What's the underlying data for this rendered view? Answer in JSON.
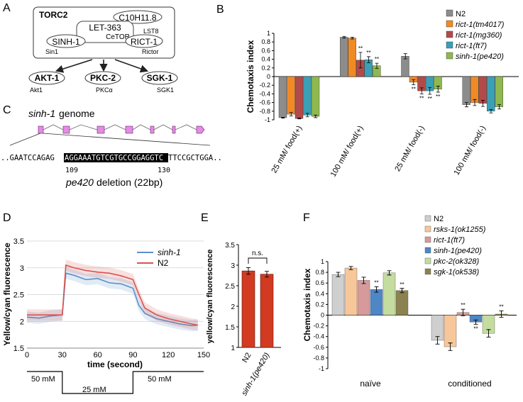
{
  "colors": {
    "n2": "#8c8c8c",
    "tm4017": "#f08a24",
    "mg360": "#b34a4a",
    "ft7": "#3aa0b5",
    "pe420": "#8fb84f",
    "bar_e": "#d23a22",
    "line_sinh1": "#5b8fc9",
    "line_n2": "#d9534f",
    "f_n2": "#cfcfcf",
    "f_rsks1": "#f7c79a",
    "f_rict1": "#d69a9a",
    "f_sinh1": "#4e86c6",
    "f_pkc2": "#c5dca0",
    "f_sgk1": "#8a8250"
  },
  "panelA": {
    "letter": "A",
    "complex_title": "TORC2",
    "c10": "C10H11.8",
    "let363": "LET-363",
    "cetor": "CeTOR",
    "lst8": "LST8",
    "sinh1": "SINH-1",
    "sin1": "Sin1",
    "rict1": "RICT-1",
    "rictor": "Rictor",
    "akt1": "AKT-1",
    "akt1_h": "Akt1",
    "pkc2": "PKC-2",
    "pkc2_h": "PKCα",
    "sgk1": "SGK-1",
    "sgk1_h": "SGK1"
  },
  "panelC": {
    "letter": "C",
    "genome_gene": "sinh-1",
    "genome_word": "genome",
    "seq_left": "..GAATCCAGAG",
    "seq_deleted": "AGGAAATGTCGTGCCGGAGGTC",
    "seq_right": "TTCCGCTGGA..",
    "pos_start": "109",
    "pos_end": "130",
    "deletion_allele": "pe420",
    "deletion_label": "deletion (22bp)"
  },
  "chart_data": [
    {
      "panel": "B",
      "type": "bar",
      "ylabel": "Chemotaxis index",
      "ylim": [
        -1,
        1
      ],
      "yticks": [
        "1",
        "0.8",
        "0.6",
        "0.4",
        "0.2",
        "0",
        "-0.2",
        "-0.4",
        "-0.6",
        "-0.8",
        "-1"
      ],
      "categories": [
        "25 mM/ food(+)",
        "100 mM/ food(+)",
        "25 mM/ food(-)",
        "100 mM/ food(-)"
      ],
      "series": [
        {
          "name": "N2",
          "values": [
            -0.95,
            0.91,
            0.47,
            -0.65
          ],
          "errors": [
            0.01,
            0.02,
            0.06,
            0.05
          ],
          "sig": [
            "",
            "",
            "",
            ""
          ]
        },
        {
          "name": "rict-1(tm4017)",
          "values": [
            -0.87,
            0.89,
            -0.13,
            -0.6
          ],
          "errors": [
            0.04,
            0.02,
            0.06,
            0.07
          ],
          "sig": [
            "",
            "",
            "**",
            ""
          ]
        },
        {
          "name": "rict-1(mg360)",
          "values": [
            -0.97,
            0.38,
            -0.33,
            -0.62
          ],
          "errors": [
            0.01,
            0.18,
            0.07,
            0.07
          ],
          "sig": [
            "",
            "**",
            "**",
            ""
          ]
        },
        {
          "name": "rict-1(ft7)",
          "values": [
            -0.89,
            0.39,
            -0.33,
            -0.8
          ],
          "errors": [
            0.04,
            0.07,
            0.08,
            0.04
          ],
          "sig": [
            "",
            "**",
            "**",
            ""
          ]
        },
        {
          "name": "sinh-1(pe420)",
          "values": [
            -0.92,
            0.25,
            -0.29,
            -0.7
          ],
          "errors": [
            0.03,
            0.06,
            0.07,
            0.05
          ],
          "sig": [
            "",
            "**",
            "**",
            ""
          ]
        }
      ]
    },
    {
      "panel": "D",
      "type": "line",
      "xlabel": "time (second)",
      "ylabel": "Yellow/cyan fluorescence",
      "xlim": [
        0,
        150
      ],
      "ylim": [
        1.5,
        3.5
      ],
      "xticks": [
        "0",
        "30",
        "60",
        "90",
        "120",
        "150"
      ],
      "yticks": [
        "3.5",
        "3",
        "2.5",
        "2",
        "1.5"
      ],
      "series": [
        {
          "name": "sinh-1",
          "x": [
            0,
            10,
            20,
            30,
            33,
            40,
            50,
            60,
            70,
            80,
            90,
            95,
            100,
            110,
            120,
            130,
            140,
            145
          ],
          "y": [
            2.08,
            2.06,
            2.1,
            2.12,
            2.9,
            2.86,
            2.78,
            2.8,
            2.72,
            2.7,
            2.62,
            2.3,
            2.15,
            2.05,
            2.0,
            1.95,
            1.92,
            1.93
          ]
        },
        {
          "name": "N2",
          "x": [
            0,
            10,
            20,
            30,
            33,
            40,
            50,
            60,
            70,
            80,
            90,
            95,
            100,
            110,
            120,
            130,
            140,
            145
          ],
          "y": [
            2.12,
            2.12,
            2.12,
            2.12,
            3.05,
            3.0,
            2.95,
            2.92,
            2.9,
            2.85,
            2.78,
            2.5,
            2.25,
            2.12,
            2.05,
            2.0,
            1.95,
            1.93
          ]
        }
      ],
      "stimulus": {
        "labels": [
          "50 mM",
          "25 mM",
          "50 mM"
        ]
      }
    },
    {
      "panel": "E",
      "type": "bar",
      "ylabel": "yellow/cyan fluorescence",
      "ylim": [
        1,
        3.5
      ],
      "yticks": [
        "3.5",
        "3",
        "2.5",
        "2",
        "1.5",
        "1"
      ],
      "categories": [
        "N2",
        "sinh-1(pe420)"
      ],
      "values": [
        2.86,
        2.78
      ],
      "errors": [
        0.08,
        0.07
      ],
      "annotation": "n.s."
    },
    {
      "panel": "F",
      "type": "bar",
      "ylabel": "Chemotaxis index",
      "ylim": [
        -1,
        1
      ],
      "yticks": [
        "1",
        "0.8",
        "0.6",
        "0.4",
        "0.2",
        "0",
        "-0.2",
        "-0.4",
        "-0.6",
        "-0.8",
        "-1"
      ],
      "categories": [
        "naïve",
        "conditioned"
      ],
      "series": [
        {
          "name": "N2",
          "values": [
            0.76,
            -0.47
          ],
          "errors": [
            0.04,
            0.07
          ],
          "sig": [
            "",
            ""
          ]
        },
        {
          "name": "rsks-1(ok1255)",
          "values": [
            0.88,
            -0.59
          ],
          "errors": [
            0.03,
            0.07
          ],
          "sig": [
            "",
            ""
          ]
        },
        {
          "name": "rict-1(ft7)",
          "values": [
            0.65,
            0.05
          ],
          "errors": [
            0.06,
            0.06
          ],
          "sig": [
            "",
            "**"
          ]
        },
        {
          "name": "sinh-1(pe420)",
          "values": [
            0.48,
            -0.13
          ],
          "errors": [
            0.05,
            0.04
          ],
          "sig": [
            "**",
            "**"
          ]
        },
        {
          "name": "pkc-2(ok328)",
          "values": [
            0.79,
            -0.34
          ],
          "errors": [
            0.04,
            0.07
          ],
          "sig": [
            "",
            ""
          ]
        },
        {
          "name": "sgk-1(ok538)",
          "values": [
            0.46,
            0.02
          ],
          "errors": [
            0.04,
            0.06
          ],
          "sig": [
            "**",
            "**"
          ]
        }
      ]
    }
  ]
}
